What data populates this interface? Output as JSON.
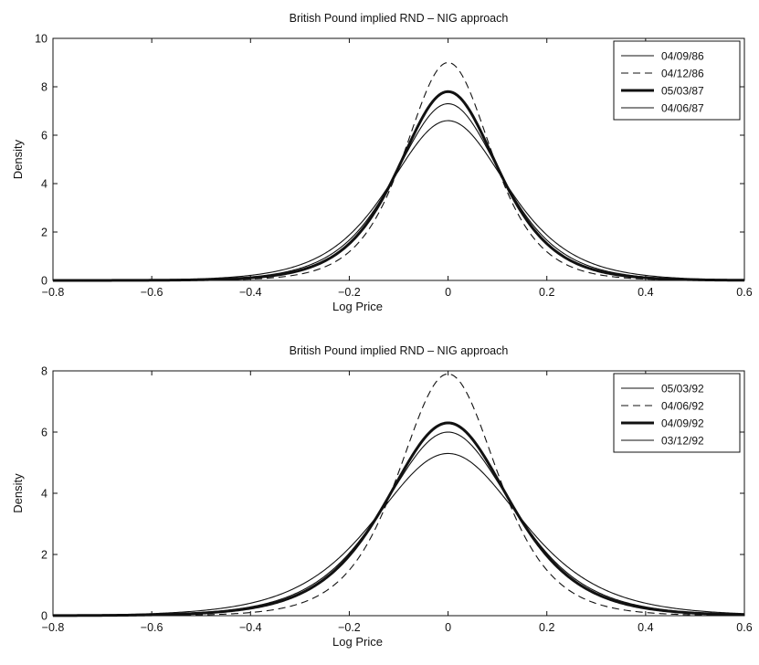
{
  "chart_data": [
    {
      "type": "line",
      "title": "British Pound implied RND – NIG approach",
      "xlabel": "Log Price",
      "ylabel": "Density",
      "xlim": [
        -0.8,
        0.6
      ],
      "ylim": [
        0,
        10
      ],
      "xticks": [
        -0.8,
        -0.6,
        -0.4,
        -0.2,
        0,
        0.2,
        0.4,
        0.6
      ],
      "xtick_labels": [
        "−0.8",
        "−0.6",
        "−0.4",
        "−0.2",
        "0",
        "0.2",
        "0.4",
        "0.6"
      ],
      "yticks": [
        0,
        2,
        4,
        6,
        8,
        10
      ],
      "ytick_labels": [
        "0",
        "2",
        "4",
        "6",
        "8",
        "10"
      ],
      "grid": false,
      "legend_position": "top-right",
      "series": [
        {
          "name": "04/09/86",
          "style": "solid",
          "width": 1.1,
          "peak_x": 0.0,
          "peak_y": 7.3
        },
        {
          "name": "04/12/86",
          "style": "dashed",
          "width": 1.1,
          "peak_x": 0.0,
          "peak_y": 9.0
        },
        {
          "name": "05/03/87",
          "style": "solid",
          "width": 3.0,
          "peak_x": 0.0,
          "peak_y": 7.8
        },
        {
          "name": "04/06/87",
          "style": "solid",
          "width": 1.1,
          "peak_x": 0.0,
          "peak_y": 6.6
        }
      ]
    },
    {
      "type": "line",
      "title": "British Pound implied RND – NIG approach",
      "xlabel": "Log Price",
      "ylabel": "Density",
      "xlim": [
        -0.8,
        0.6
      ],
      "ylim": [
        0,
        8
      ],
      "xticks": [
        -0.8,
        -0.6,
        -0.4,
        -0.2,
        0,
        0.2,
        0.4,
        0.6
      ],
      "xtick_labels": [
        "−0.8",
        "−0.6",
        "−0.4",
        "−0.2",
        "0",
        "0.2",
        "0.4",
        "0.6"
      ],
      "yticks": [
        0,
        2,
        4,
        6,
        8
      ],
      "ytick_labels": [
        "0",
        "2",
        "4",
        "6",
        "8"
      ],
      "grid": false,
      "legend_position": "top-right",
      "series": [
        {
          "name": "05/03/92",
          "style": "solid",
          "width": 1.1,
          "peak_x": 0.0,
          "peak_y": 6.0
        },
        {
          "name": "04/06/92",
          "style": "dashed",
          "width": 1.1,
          "peak_x": 0.0,
          "peak_y": 7.9
        },
        {
          "name": "04/09/92",
          "style": "solid",
          "width": 3.0,
          "peak_x": 0.0,
          "peak_y": 6.3
        },
        {
          "name": "03/12/92",
          "style": "solid",
          "width": 1.1,
          "peak_x": 0.0,
          "peak_y": 5.3
        }
      ]
    }
  ]
}
